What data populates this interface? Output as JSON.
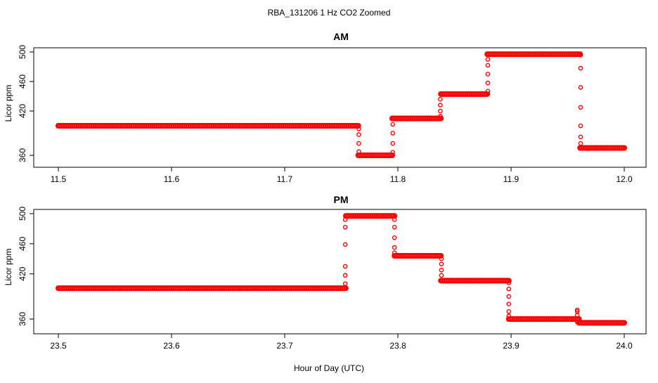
{
  "figure": {
    "title": "RBA_131206  1 Hz CO2 Zoomed",
    "xlabel": "Hour of Day (UTC)"
  },
  "colors": {
    "points": "#ff0000",
    "axes": "#000000"
  },
  "chart_data": [
    {
      "type": "scatter",
      "title": "AM",
      "ylabel": "Licor ppm",
      "xlim": [
        11.5,
        12.0
      ],
      "ylim": [
        360,
        500
      ],
      "x_ticks": [
        11.5,
        11.6,
        11.7,
        11.8,
        11.9,
        12.0
      ],
      "x_tick_labels": [
        "11.5",
        "11.6",
        "11.7",
        "11.8",
        "11.9",
        "12.0"
      ],
      "y_ticks": [
        360,
        420,
        460,
        500
      ],
      "y_tick_labels": [
        "360",
        "420",
        "460",
        "500"
      ],
      "segments": [
        {
          "x_start": 11.5,
          "x_end": 11.765,
          "y": 400
        },
        {
          "x_start": 11.765,
          "x_end": 11.795,
          "y": 360
        },
        {
          "x_start": 11.795,
          "x_end": 11.838,
          "y": 410
        },
        {
          "x_start": 11.838,
          "x_end": 11.879,
          "y": 443
        },
        {
          "x_start": 11.879,
          "x_end": 11.961,
          "y": 497
        },
        {
          "x_start": 11.961,
          "x_end": 12.0,
          "y": 370
        }
      ],
      "transitions": [
        {
          "x": 11.7655,
          "values": [
            396,
            388,
            376,
            365
          ]
        },
        {
          "x": 11.7955,
          "values": [
            364,
            376,
            390,
            402
          ]
        },
        {
          "x": 11.8375,
          "values": [
            413,
            420,
            428,
            436
          ]
        },
        {
          "x": 11.8795,
          "values": [
            447,
            458,
            470,
            482,
            490
          ]
        },
        {
          "x": 11.9615,
          "values": [
            496,
            478,
            452,
            425,
            400,
            385,
            376
          ]
        }
      ]
    },
    {
      "type": "scatter",
      "title": "PM",
      "ylabel": "Licor ppm",
      "xlim": [
        23.5,
        24.0
      ],
      "ylim": [
        360,
        500
      ],
      "x_ticks": [
        23.5,
        23.6,
        23.7,
        23.8,
        23.9,
        24.0
      ],
      "x_tick_labels": [
        "23.5",
        "23.6",
        "23.7",
        "23.8",
        "23.9",
        "24.0"
      ],
      "y_ticks": [
        360,
        420,
        460,
        500
      ],
      "y_tick_labels": [
        "360",
        "420",
        "460",
        "500"
      ],
      "segments": [
        {
          "x_start": 23.5,
          "x_end": 23.754,
          "y": 401
        },
        {
          "x_start": 23.754,
          "x_end": 23.797,
          "y": 497
        },
        {
          "x_start": 23.797,
          "x_end": 23.838,
          "y": 444
        },
        {
          "x_start": 23.838,
          "x_end": 23.898,
          "y": 411
        },
        {
          "x_start": 23.898,
          "x_end": 23.96,
          "y": 360
        },
        {
          "x_start": 23.96,
          "x_end": 24.0,
          "y": 355
        }
      ],
      "transitions": [
        {
          "x": 23.7535,
          "values": [
            407,
            418,
            430,
            459,
            482,
            492
          ]
        },
        {
          "x": 23.797,
          "values": [
            492,
            482,
            468,
            455,
            448
          ]
        },
        {
          "x": 23.8385,
          "values": [
            440,
            433,
            425,
            418
          ]
        },
        {
          "x": 23.898,
          "values": [
            408,
            400,
            390,
            380,
            370,
            364
          ]
        },
        {
          "x": 23.9585,
          "values": [
            365,
            370,
            372,
            356
          ]
        }
      ]
    }
  ]
}
